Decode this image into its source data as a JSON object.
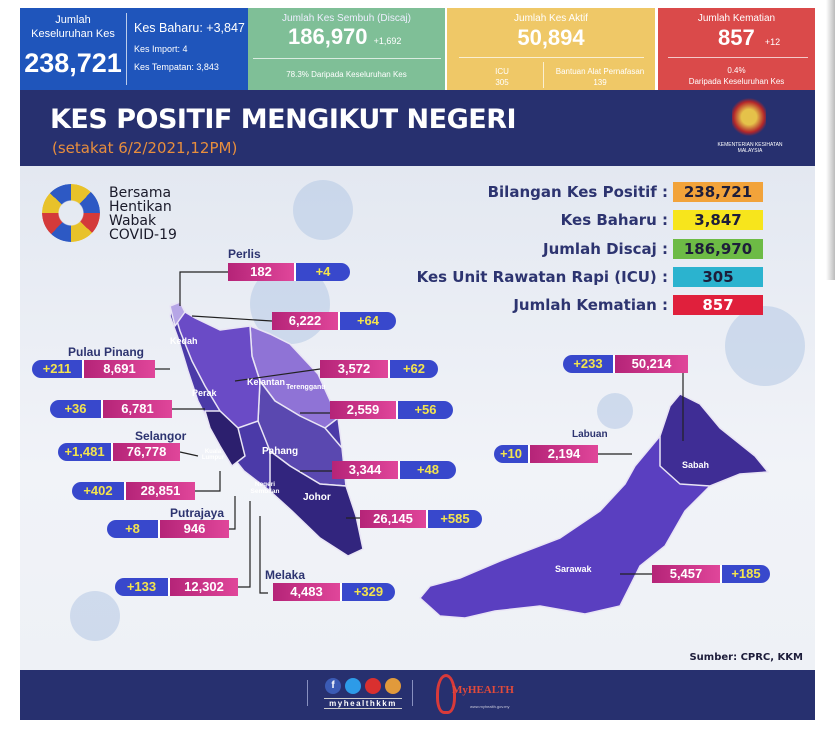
{
  "stats": {
    "total": {
      "label": "Jumlah Keseluruhan Kes",
      "value": "238,721"
    },
    "new": {
      "label": "Kes Baharu: +3,847",
      "import": "Kes Import: 4",
      "local": "Kes Tempatan: 3,843"
    },
    "recovered": {
      "label": "Jumlah Kes Sembuh (Discaj)",
      "value": "186,970",
      "delta": "+1,692",
      "note": "78.3% Daripada Keseluruhan Kes"
    },
    "active": {
      "label": "Jumlah Kes Aktif",
      "value": "50,894",
      "icu_label": "ICU",
      "icu": "305",
      "vent_label": "Bantuan Alat Pernafasan",
      "vent": "139"
    },
    "deaths": {
      "label": "Jumlah Kematian",
      "value": "857",
      "delta": "+12",
      "pct": "0.4%",
      "note": "Daripada Keseluruhan Kes"
    }
  },
  "banner": {
    "title": "KES POSITIF MENGIKUT NEGERI",
    "subtitle": "(setakat 6/2/2021,12PM)",
    "ministry": "KEMENTERIAN KESIHATAN MALAYSIA"
  },
  "campaign": [
    "Bersama",
    "Hentikan",
    "Wabak",
    "COVID-19"
  ],
  "summary": [
    {
      "label": "Bilangan Kes Positif :",
      "value": "238,721",
      "color": "#f2a33a",
      "text": "#1d1d3a"
    },
    {
      "label": "Kes Baharu :",
      "value": "3,847",
      "color": "#f7e51c",
      "text": "#1d1d3a"
    },
    {
      "label": "Jumlah Discaj :",
      "value": "186,970",
      "color": "#6dbb45",
      "text": "#1d1d3a"
    },
    {
      "label": "Kes Unit Rawatan Rapi (ICU) :",
      "value": "305",
      "color": "#2bb3cf",
      "text": "#1d1d3a"
    },
    {
      "label": "Jumlah Kematian :",
      "value": "857",
      "color": "#e0203c",
      "text": "#ffffff"
    }
  ],
  "states": {
    "perlis": {
      "name": "Perlis",
      "total": "182",
      "new": "+4"
    },
    "kedah": {
      "name": "Kedah",
      "total": "6,222",
      "new": "+64"
    },
    "penang": {
      "name": "Pulau Pinang",
      "total": "8,691",
      "new": "+211"
    },
    "kelantan": {
      "name": "Kelantan",
      "total": "3,572",
      "new": "+62"
    },
    "perak": {
      "name": "Perak",
      "total": "6,781",
      "new": "+36"
    },
    "terengganu": {
      "name": "Terengganu",
      "total": "2,559",
      "new": "+56"
    },
    "selangor": {
      "name": "Selangor",
      "total": "76,778",
      "new": "+1,481"
    },
    "pahang": {
      "name": "Pahang",
      "total": "3,344",
      "new": "+48"
    },
    "kl": {
      "name": "Kuala Lumpur",
      "total": "28,851",
      "new": "+402"
    },
    "putrajaya": {
      "name": "Putrajaya",
      "total": "946",
      "new": "+8"
    },
    "johor": {
      "name": "Johor",
      "total": "26,145",
      "new": "+585"
    },
    "n9": {
      "name": "Negeri Sembilan",
      "total": "12,302",
      "new": "+133"
    },
    "melaka": {
      "name": "Melaka",
      "total": "4,483",
      "new": "+329"
    },
    "sabah": {
      "name": "Sabah",
      "total": "50,214",
      "new": "+233"
    },
    "labuan": {
      "name": "Labuan",
      "total": "2,194",
      "new": "+10"
    },
    "sarawak": {
      "name": "Sarawak",
      "total": "5,457",
      "new": "+185"
    }
  },
  "source": "Sumber: CPRC, KKM",
  "footer": {
    "social_handle": "myhealthkkm",
    "social_icons": [
      "facebook-icon",
      "twitter-icon",
      "youtube-icon",
      "instagram-icon"
    ],
    "brand": "MyHEALTH",
    "url": "www.myhealth.gov.my"
  }
}
